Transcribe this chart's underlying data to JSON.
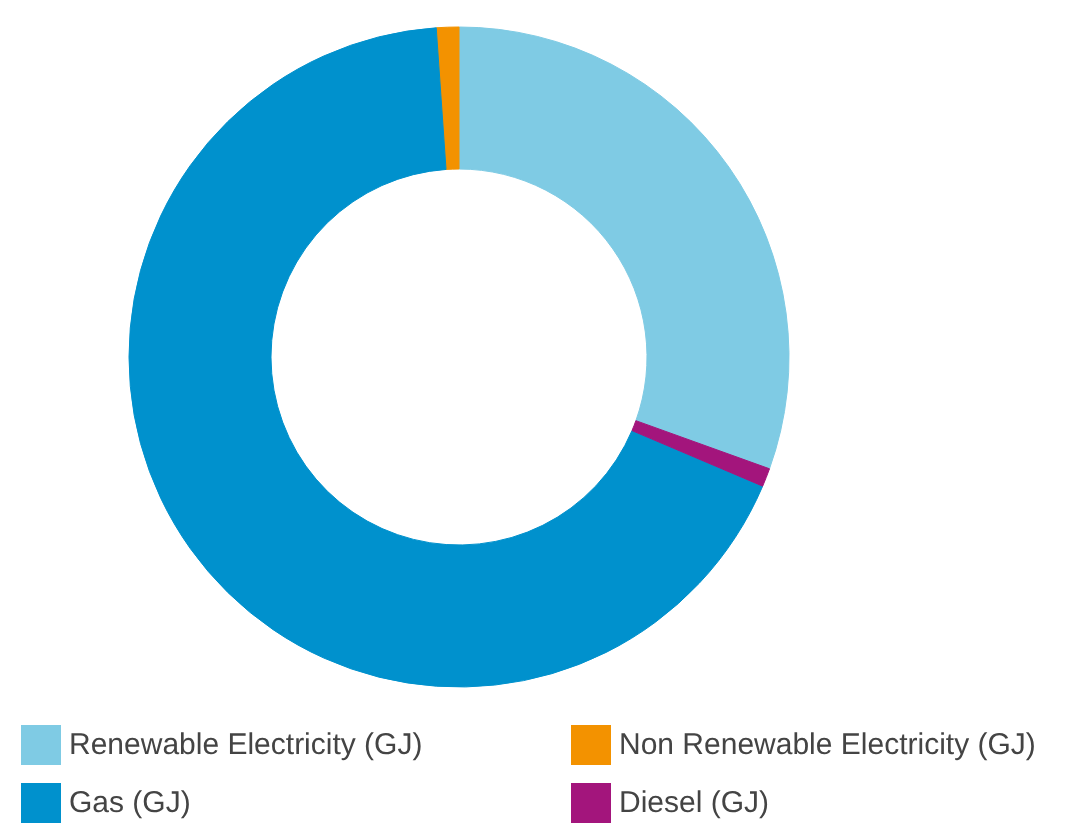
{
  "chart_data": {
    "type": "donut",
    "categories": [
      "Renewable Electricity (GJ)",
      "Non Renewable Electricity (GJ)",
      "Gas (GJ)",
      "Diesel (GJ)"
    ],
    "values": [
      30.5,
      1.1,
      67.5,
      0.9
    ],
    "colors": [
      "#7fcbe4",
      "#f39200",
      "#0091cd",
      "#a3157c"
    ],
    "legend": "bottom"
  }
}
